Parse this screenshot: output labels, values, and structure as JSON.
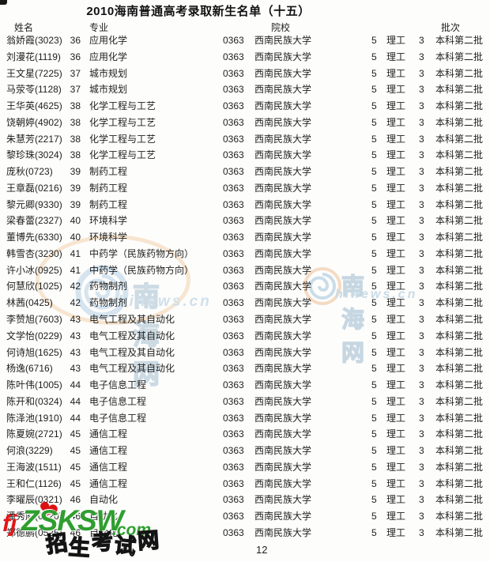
{
  "title": "2010海南普通高考录取新生名单（十五）",
  "page_number": "12",
  "table": {
    "headers": {
      "name": "姓名",
      "major": "专业",
      "college": "院校",
      "batch": "批次"
    },
    "shared": {
      "college_code": "0363",
      "college_name": "西南民族大学",
      "col5": "5",
      "track": "理工",
      "col3": "3",
      "batch_name": "本科第二批"
    },
    "rows": [
      {
        "name": "翁娇霞(3023)",
        "major_code": "36",
        "major": "应用化学"
      },
      {
        "name": "刘漫花(1119)",
        "major_code": "36",
        "major": "应用化学"
      },
      {
        "name": "王文星(7225)",
        "major_code": "37",
        "major": "城市规划"
      },
      {
        "name": "马荥苓(1128)",
        "major_code": "37",
        "major": "城市规划"
      },
      {
        "name": "王华英(4625)",
        "major_code": "38",
        "major": "化学工程与工艺"
      },
      {
        "name": "饶朝婷(4902)",
        "major_code": "38",
        "major": "化学工程与工艺"
      },
      {
        "name": "朱慧芳(2217)",
        "major_code": "38",
        "major": "化学工程与工艺"
      },
      {
        "name": "黎珍珠(3024)",
        "major_code": "38",
        "major": "化学工程与工艺"
      },
      {
        "name": "庞秋(0723)",
        "major_code": "39",
        "major": "制药工程"
      },
      {
        "name": "王章磊(0216)",
        "major_code": "39",
        "major": "制药工程"
      },
      {
        "name": "黎元卿(9330)",
        "major_code": "39",
        "major": "制药工程"
      },
      {
        "name": "梁春蕾(2327)",
        "major_code": "40",
        "major": "环境科学"
      },
      {
        "name": "董博先(6330)",
        "major_code": "40",
        "major": "环境科学"
      },
      {
        "name": "韩雪杏(3230)",
        "major_code": "41",
        "major": "中药学（民族药物方向）"
      },
      {
        "name": "许小冰(0925)",
        "major_code": "41",
        "major": "中药学（民族药物方向）"
      },
      {
        "name": "何慧欣(1025)",
        "major_code": "42",
        "major": "药物制剂"
      },
      {
        "name": "林茜(0425)",
        "major_code": "42",
        "major": "药物制剂"
      },
      {
        "name": "李赞旭(7603)",
        "major_code": "43",
        "major": "电气工程及其自动化"
      },
      {
        "name": "文学怡(0229)",
        "major_code": "43",
        "major": "电气工程及其自动化"
      },
      {
        "name": "何诗旭(1625)",
        "major_code": "43",
        "major": "电气工程及其自动化"
      },
      {
        "name": "杨逸(6716)",
        "major_code": "43",
        "major": "电气工程及其自动化"
      },
      {
        "name": "陈叶伟(1005)",
        "major_code": "44",
        "major": "电子信息工程"
      },
      {
        "name": "陈开和(0324)",
        "major_code": "44",
        "major": "电子信息工程"
      },
      {
        "name": "陈泽池(1910)",
        "major_code": "44",
        "major": "电子信息工程"
      },
      {
        "name": "陈夏婉(2721)",
        "major_code": "45",
        "major": "通信工程"
      },
      {
        "name": "何浪(3229)",
        "major_code": "45",
        "major": "通信工程"
      },
      {
        "name": "王海波(1511)",
        "major_code": "45",
        "major": "通信工程"
      },
      {
        "name": "王和仁(1126)",
        "major_code": "45",
        "major": "通信工程"
      },
      {
        "name": "李曜辰(0321)",
        "major_code": "46",
        "major": "自动化"
      },
      {
        "name": "潘秀庭(0120)",
        "major_code": "46",
        "major": "自动化"
      },
      {
        "name": "郑德鹏(0525)",
        "major_code": "46",
        "major": "自动化"
      }
    ]
  },
  "watermarks": {
    "hinews": {
      "site_name": "南海网",
      "site_url": "hinews.cn",
      "blue": "#9cb8cc",
      "orange": "#f3cfa6"
    },
    "fjzsksw": {
      "prefix": "fj",
      "main": "ZSKSW",
      "suffix": ".com",
      "caption": "招生考试网",
      "heart_icon": "❤",
      "green": "#2f9e2f",
      "red": "#e01818"
    }
  },
  "colors": {
    "background": "#fdfdfc",
    "text": "#1e1e1e"
  }
}
